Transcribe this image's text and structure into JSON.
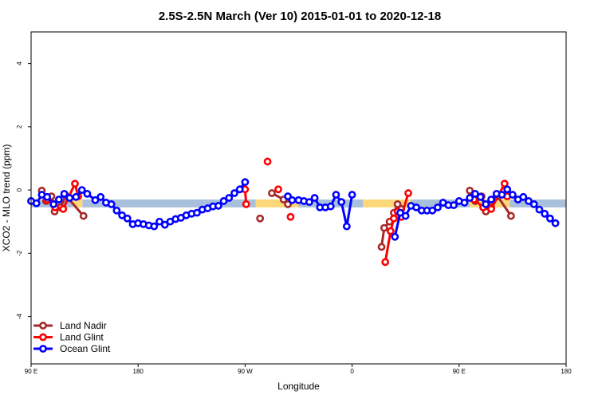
{
  "chart_data": {
    "type": "line",
    "title": "2.5S-2.5N March (Ver 10)   2015-01-01 to 2020-12-18",
    "xlabel": "Longitude",
    "ylabel": "XCO2 - MLO trend (ppm)",
    "xlim": [
      0,
      10
    ],
    "ylim": [
      -5.5,
      5
    ],
    "x_ticks": [
      {
        "value": 0,
        "label": "90 E"
      },
      {
        "value": 2,
        "label": "180"
      },
      {
        "value": 4,
        "label": "90 W"
      },
      {
        "value": 6,
        "label": "0"
      },
      {
        "value": 8,
        "label": "90 E"
      },
      {
        "value": 10,
        "label": "180"
      }
    ],
    "y_ticks": [
      {
        "value": -4,
        "label": "-4"
      },
      {
        "value": -2,
        "label": "-2"
      },
      {
        "value": 0,
        "label": "0"
      },
      {
        "value": 2,
        "label": "2"
      },
      {
        "value": 4,
        "label": "4"
      }
    ],
    "band": {
      "ymin": -0.55,
      "ymax": -0.3,
      "segments": [
        {
          "x0": 0,
          "x1": 0.78,
          "land": false
        },
        {
          "x0": 0.78,
          "x1": 0.96,
          "land": true
        },
        {
          "x0": 0.96,
          "x1": 4.2,
          "land": false
        },
        {
          "x0": 4.2,
          "x1": 5.0,
          "land": true
        },
        {
          "x0": 5.0,
          "x1": 6.2,
          "land": false
        },
        {
          "x0": 6.2,
          "x1": 7.1,
          "land": true
        },
        {
          "x0": 7.1,
          "x1": 8.2,
          "land": false
        },
        {
          "x0": 8.2,
          "x1": 8.95,
          "land": true
        },
        {
          "x0": 8.95,
          "x1": 10,
          "land": false
        }
      ]
    },
    "band_colors": {
      "ocean": "#a8c0dc",
      "land": "#fdd87a"
    },
    "legend_position": "bottom-left",
    "series": [
      {
        "name": "Land Nadir",
        "color": "#a52a2a",
        "segments": [
          [
            [
              0.2,
              -0.02
            ],
            [
              0.28,
              -0.35
            ],
            [
              0.38,
              -0.2
            ],
            [
              0.44,
              -0.68
            ],
            [
              0.55,
              -0.55
            ],
            [
              0.65,
              -0.18
            ],
            [
              0.98,
              -0.82
            ]
          ],
          [
            [
              4.28,
              -0.9
            ]
          ],
          [
            [
              4.5,
              -0.1
            ],
            [
              4.72,
              -0.3
            ],
            [
              4.8,
              -0.45
            ]
          ],
          [
            [
              6.55,
              -1.8
            ],
            [
              6.6,
              -1.2
            ],
            [
              6.7,
              -1.0
            ],
            [
              6.78,
              -0.72
            ],
            [
              6.85,
              -0.45
            ],
            [
              6.92,
              -0.6
            ]
          ],
          [
            [
              8.2,
              -0.02
            ],
            [
              8.3,
              -0.35
            ],
            [
              8.42,
              -0.2
            ],
            [
              8.5,
              -0.68
            ],
            [
              8.6,
              -0.55
            ],
            [
              8.72,
              -0.2
            ],
            [
              8.97,
              -0.82
            ]
          ]
        ]
      },
      {
        "name": "Land Glint",
        "color": "#ff0000",
        "segments": [
          [
            [
              0.3,
              -0.3
            ],
            [
              0.45,
              -0.55
            ],
            [
              0.6,
              -0.6
            ],
            [
              0.82,
              0.2
            ],
            [
              0.88,
              -0.2
            ]
          ],
          [
            [
              4.0,
              0.02
            ],
            [
              4.02,
              -0.45
            ]
          ],
          [
            [
              4.42,
              0.9
            ]
          ],
          [
            [
              4.62,
              0.02
            ]
          ],
          [
            [
              4.85,
              -0.85
            ]
          ],
          [
            [
              6.62,
              -2.28
            ],
            [
              6.72,
              -1.3
            ],
            [
              6.78,
              -0.9
            ],
            [
              6.85,
              -0.68
            ],
            [
              6.92,
              -0.85
            ],
            [
              7.05,
              -0.1
            ]
          ],
          [
            [
              8.28,
              -0.3
            ],
            [
              8.45,
              -0.55
            ],
            [
              8.6,
              -0.6
            ],
            [
              8.85,
              0.2
            ],
            [
              8.9,
              -0.2
            ]
          ]
        ]
      },
      {
        "name": "Ocean Glint",
        "color": "#0000ff",
        "segments": [
          [
            [
              0.0,
              -0.35
            ],
            [
              0.1,
              -0.42
            ],
            [
              0.2,
              -0.15
            ],
            [
              0.3,
              -0.22
            ],
            [
              0.42,
              -0.45
            ],
            [
              0.52,
              -0.3
            ],
            [
              0.62,
              -0.12
            ],
            [
              0.72,
              -0.25
            ],
            [
              0.84,
              -0.22
            ],
            [
              0.95,
              0.0
            ],
            [
              1.05,
              -0.12
            ],
            [
              1.2,
              -0.32
            ],
            [
              1.3,
              -0.22
            ],
            [
              1.4,
              -0.4
            ],
            [
              1.5,
              -0.45
            ],
            [
              1.6,
              -0.65
            ],
            [
              1.7,
              -0.8
            ],
            [
              1.8,
              -0.9
            ],
            [
              1.9,
              -1.08
            ],
            [
              2.0,
              -1.05
            ],
            [
              2.1,
              -1.08
            ],
            [
              2.2,
              -1.12
            ],
            [
              2.3,
              -1.15
            ],
            [
              2.4,
              -1.0
            ],
            [
              2.5,
              -1.1
            ],
            [
              2.6,
              -1.0
            ],
            [
              2.7,
              -0.92
            ],
            [
              2.8,
              -0.88
            ],
            [
              2.9,
              -0.8
            ],
            [
              3.0,
              -0.75
            ],
            [
              3.1,
              -0.72
            ],
            [
              3.2,
              -0.62
            ],
            [
              3.3,
              -0.58
            ],
            [
              3.4,
              -0.52
            ],
            [
              3.5,
              -0.5
            ],
            [
              3.6,
              -0.35
            ],
            [
              3.7,
              -0.25
            ],
            [
              3.8,
              -0.1
            ],
            [
              3.9,
              0.02
            ],
            [
              4.0,
              0.25
            ]
          ],
          [
            [
              4.8,
              -0.2
            ],
            [
              4.88,
              -0.32
            ],
            [
              5.0,
              -0.32
            ],
            [
              5.1,
              -0.35
            ],
            [
              5.2,
              -0.38
            ],
            [
              5.3,
              -0.25
            ],
            [
              5.4,
              -0.55
            ],
            [
              5.5,
              -0.55
            ],
            [
              5.6,
              -0.52
            ],
            [
              5.7,
              -0.15
            ],
            [
              5.8,
              -0.38
            ],
            [
              5.9,
              -1.15
            ],
            [
              6.0,
              -0.15
            ]
          ],
          [
            [
              6.8,
              -1.48
            ],
            [
              6.9,
              -0.72
            ],
            [
              7.0,
              -0.82
            ],
            [
              7.1,
              -0.5
            ],
            [
              7.2,
              -0.55
            ],
            [
              7.3,
              -0.65
            ],
            [
              7.4,
              -0.65
            ],
            [
              7.5,
              -0.65
            ],
            [
              7.6,
              -0.55
            ],
            [
              7.7,
              -0.4
            ],
            [
              7.8,
              -0.48
            ],
            [
              7.9,
              -0.48
            ],
            [
              8.0,
              -0.35
            ],
            [
              8.1,
              -0.4
            ],
            [
              8.2,
              -0.25
            ],
            [
              8.3,
              -0.12
            ],
            [
              8.4,
              -0.22
            ],
            [
              8.5,
              -0.45
            ],
            [
              8.6,
              -0.3
            ],
            [
              8.7,
              -0.12
            ],
            [
              8.8,
              -0.15
            ],
            [
              8.9,
              0.02
            ],
            [
              9.0,
              -0.15
            ],
            [
              9.1,
              -0.3
            ],
            [
              9.2,
              -0.22
            ],
            [
              9.3,
              -0.35
            ],
            [
              9.4,
              -0.45
            ],
            [
              9.5,
              -0.62
            ],
            [
              9.6,
              -0.75
            ],
            [
              9.7,
              -0.9
            ],
            [
              9.8,
              -1.05
            ]
          ]
        ]
      }
    ]
  }
}
